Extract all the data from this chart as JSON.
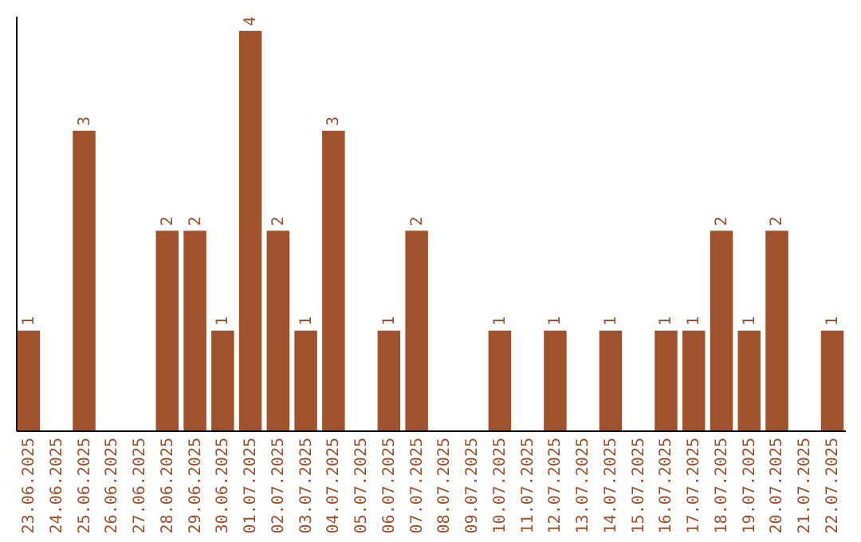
{
  "chart_data": {
    "type": "bar",
    "categories": [
      "23.06.2025",
      "24.06.2025",
      "25.06.2025",
      "26.06.2025",
      "27.06.2025",
      "28.06.2025",
      "29.06.2025",
      "30.06.2025",
      "01.07.2025",
      "02.07.2025",
      "03.07.2025",
      "04.07.2025",
      "05.07.2025",
      "06.07.2025",
      "07.07.2025",
      "08.07.2025",
      "09.07.2025",
      "10.07.2025",
      "11.07.2025",
      "12.07.2025",
      "13.07.2025",
      "14.07.2025",
      "15.07.2025",
      "16.07.2025",
      "17.07.2025",
      "18.07.2025",
      "19.07.2025",
      "20.07.2025",
      "21.07.2025",
      "22.07.2025"
    ],
    "values": [
      1,
      0,
      3,
      0,
      0,
      2,
      2,
      1,
      4,
      2,
      1,
      3,
      0,
      1,
      2,
      0,
      0,
      1,
      0,
      1,
      0,
      1,
      0,
      1,
      1,
      2,
      1,
      2,
      0,
      1
    ],
    "value_labels": [
      "1",
      null,
      "3",
      null,
      null,
      "2",
      "2",
      "1",
      "4",
      "2",
      "1",
      "3",
      null,
      "1",
      "2",
      null,
      null,
      "1",
      null,
      "1",
      null,
      "1",
      null,
      "1",
      "1",
      "2",
      "1",
      "2",
      null,
      "1"
    ],
    "color": "#a0522d",
    "ylim": [
      0,
      4.15
    ],
    "tick_labels": "x"
  }
}
